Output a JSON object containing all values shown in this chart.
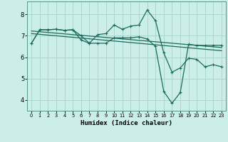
{
  "xlabel": "Humidex (Indice chaleur)",
  "bg_color": "#cceee8",
  "grid_color": "#aad6d0",
  "line_color": "#1a6b5a",
  "xlim": [
    -0.5,
    23.5
  ],
  "ylim": [
    3.5,
    8.6
  ],
  "yticks": [
    4,
    5,
    6,
    7,
    8
  ],
  "xticks": [
    0,
    1,
    2,
    3,
    4,
    5,
    6,
    7,
    8,
    9,
    10,
    11,
    12,
    13,
    14,
    15,
    16,
    17,
    18,
    19,
    20,
    21,
    22,
    23
  ],
  "series1_x": [
    0,
    1,
    2,
    3,
    4,
    5,
    6,
    7,
    8,
    9,
    10,
    11,
    12,
    13,
    14,
    15,
    16,
    17,
    18,
    19,
    20,
    21,
    22,
    23
  ],
  "series1_y": [
    6.65,
    7.28,
    7.28,
    7.3,
    7.25,
    7.28,
    7.0,
    6.65,
    7.05,
    7.1,
    7.5,
    7.3,
    7.45,
    7.5,
    8.2,
    7.7,
    6.2,
    5.3,
    5.5,
    5.95,
    5.9,
    5.55,
    5.65,
    5.55
  ],
  "series2_x": [
    0,
    1,
    2,
    3,
    4,
    5,
    6,
    7,
    8,
    9,
    10,
    11,
    12,
    13,
    14,
    15,
    16,
    17,
    18,
    19,
    20,
    21,
    22,
    23
  ],
  "series2_y": [
    6.65,
    7.28,
    7.28,
    7.3,
    7.25,
    7.28,
    6.8,
    6.65,
    6.65,
    6.65,
    6.9,
    6.9,
    6.9,
    6.95,
    6.85,
    6.5,
    4.4,
    3.85,
    4.35,
    6.6,
    6.55,
    6.55,
    6.55,
    6.55
  ],
  "series3_x": [
    0,
    23
  ],
  "series3_y": [
    7.22,
    6.45
  ],
  "series4_x": [
    0,
    23
  ],
  "series4_y": [
    7.1,
    6.3
  ]
}
